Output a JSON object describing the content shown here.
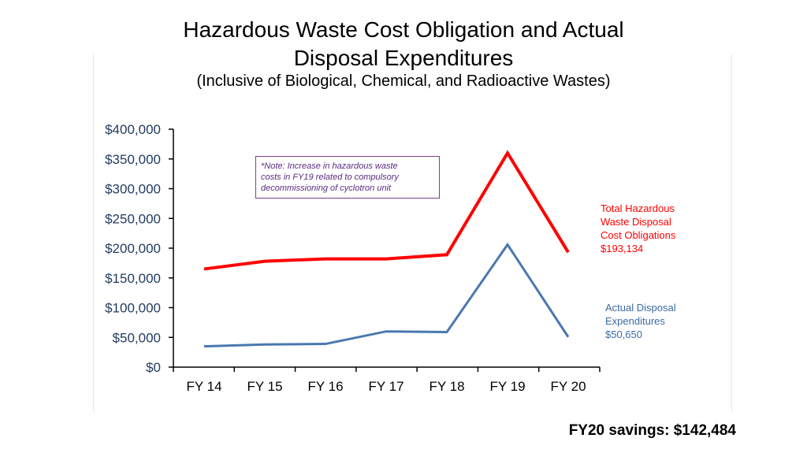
{
  "chart_data": {
    "type": "line",
    "title_line1": "Hazardous Waste Cost Obligation and Actual",
    "title_line2": "Disposal Expenditures",
    "subtitle": "(Inclusive of Biological, Chemical, and Radioactive Wastes)",
    "categories": [
      "FY 14",
      "FY 15",
      "FY 16",
      "FY 17",
      "FY 18",
      "FY 19",
      "FY 20"
    ],
    "y_ticks": [
      "$0",
      "$50,000",
      "$100,000",
      "$150,000",
      "$200,000",
      "$250,000",
      "$300,000",
      "$350,000",
      "$400,000"
    ],
    "ylim": [
      0,
      400000
    ],
    "grid": false,
    "legend": "right",
    "series": [
      {
        "label_lines": [
          "Total Hazardous",
          "Waste Disposal",
          "Cost Obligations",
          "$193,134"
        ],
        "color": "#ff0000",
        "values": [
          165000,
          178000,
          182000,
          182000,
          189000,
          360000,
          193134
        ]
      },
      {
        "label_lines": [
          "Actual Disposal",
          "Expenditures",
          "$50,650"
        ],
        "color": "#4a78b0",
        "values": [
          35000,
          38000,
          39000,
          60000,
          59000,
          206000,
          50650
        ]
      }
    ],
    "note_lines": [
      "*Note: Increase in hazardous waste",
      "costs in FY19 related to compulsory",
      "decommissioning of cyclotron unit"
    ]
  },
  "footer": {
    "savings": "FY20 savings: $142,484"
  }
}
